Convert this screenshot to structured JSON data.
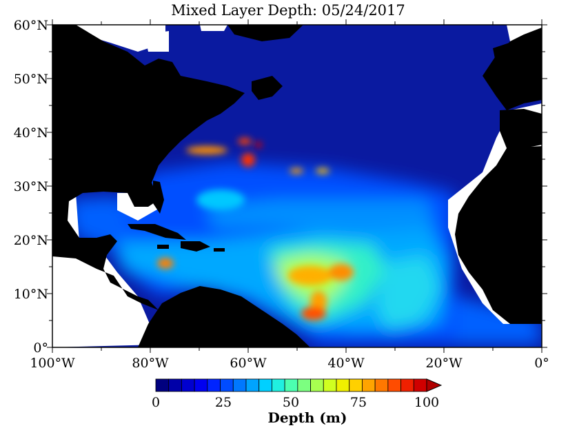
{
  "title": "Mixed Layer Depth: 05/24/2017",
  "map": {
    "lat_labels": [
      "60°N",
      "50°N",
      "40°N",
      "30°N",
      "20°N",
      "10°N",
      "0°"
    ],
    "lon_labels": [
      "100°W",
      "80°W",
      "60°W",
      "40°W",
      "20°W",
      "0°"
    ]
  },
  "colorbar": {
    "ticks": [
      "0",
      "25",
      "50",
      "75",
      "100"
    ],
    "label": "Depth (m)",
    "colors": [
      "#00007f",
      "#0000a8",
      "#0000d0",
      "#0000f0",
      "#0024ff",
      "#004cff",
      "#0078ff",
      "#00a4ff",
      "#00d0ff",
      "#20f0e0",
      "#4cffb0",
      "#7cff80",
      "#a8ff50",
      "#d0ff20",
      "#f0f000",
      "#ffd000",
      "#ffa400",
      "#ff7800",
      "#ff4c00",
      "#f02000",
      "#d00000"
    ],
    "over_color": "#b00000"
  }
}
